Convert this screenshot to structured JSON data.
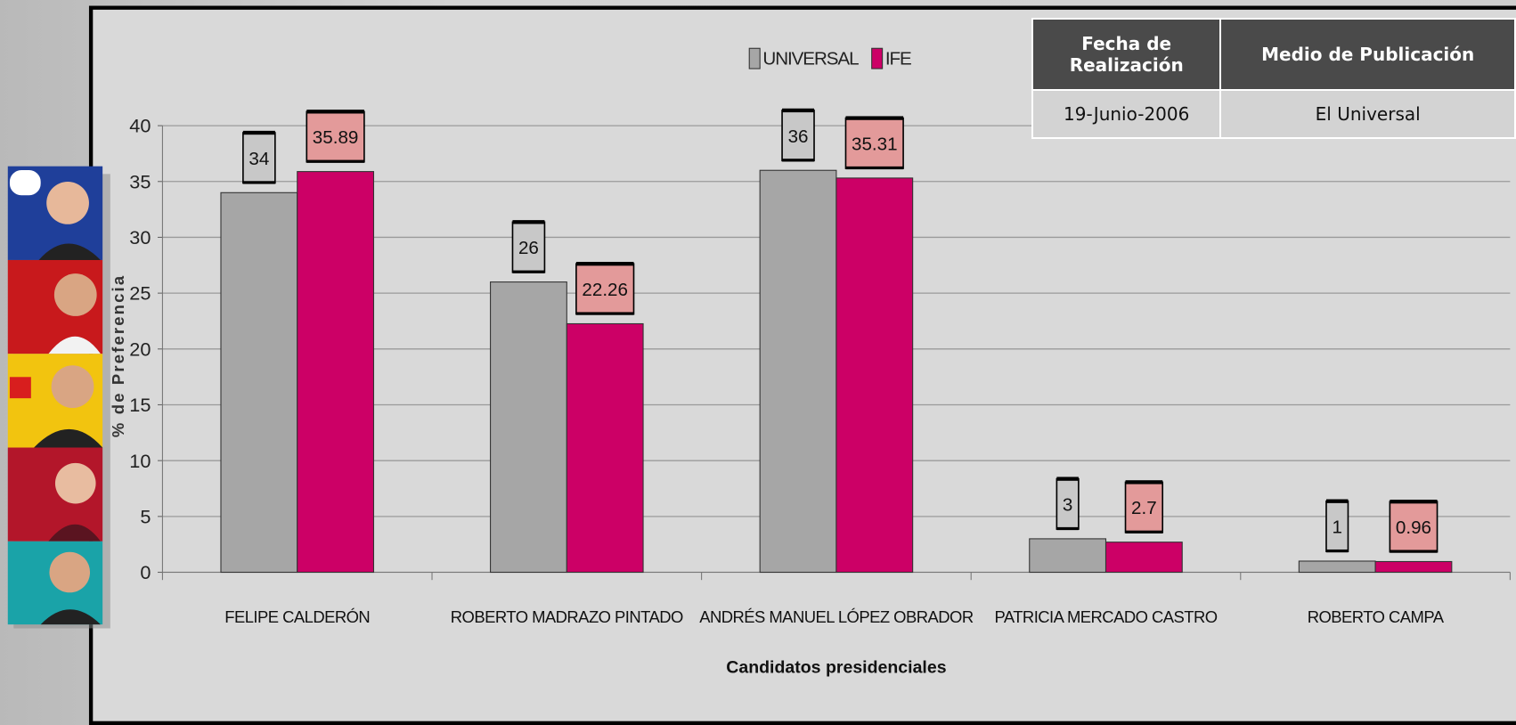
{
  "chart_data": {
    "type": "bar",
    "x_label": "Candidatos presidenciales",
    "y_label": "% de Preferencia",
    "categories": [
      "FELIPE CALDERÓN",
      "ROBERTO MADRAZO PINTADO",
      "ANDRÉS MANUEL LÓPEZ OBRADOR",
      "PATRICIA MERCADO CASTRO",
      "ROBERTO CAMPA"
    ],
    "series": [
      {
        "name": "UNIVERSAL",
        "color": "#a6a6a6",
        "values": [
          34,
          26,
          36,
          3,
          1
        ]
      },
      {
        "name": "IFE",
        "color": "#cc0066",
        "values": [
          35.89,
          22.26,
          35.31,
          2.7,
          0.96
        ]
      }
    ],
    "ylim": [
      0,
      40
    ],
    "yticks": [
      0,
      5,
      10,
      15,
      20,
      25,
      30,
      35,
      40
    ],
    "grid": true,
    "legend": "top"
  },
  "table": {
    "headers": [
      "Fecha de Realización",
      "Medio de Publicación"
    ],
    "rows": [
      [
        "19-Junio-2006",
        "El Universal"
      ]
    ]
  }
}
